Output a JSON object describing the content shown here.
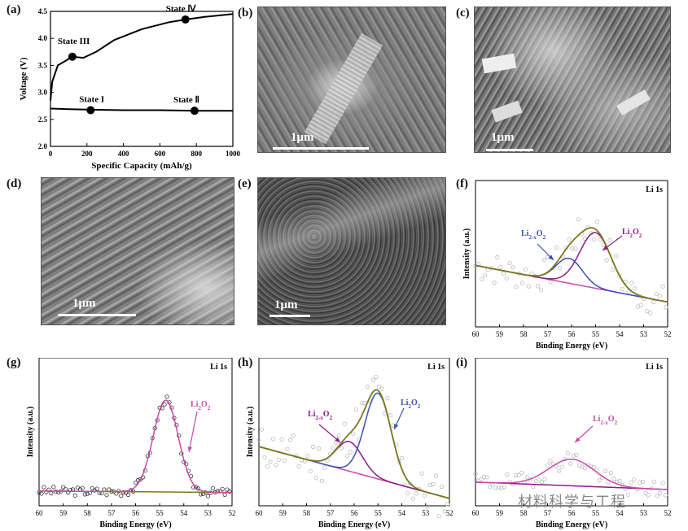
{
  "panels": {
    "a": "(a)",
    "b": "(b)",
    "c": "(c)",
    "d": "(d)",
    "e": "(e)",
    "f": "(f)",
    "g": "(g)",
    "h": "(h)",
    "i": "(i)"
  },
  "sem": {
    "b_scale": "1μm",
    "c_scale": "1μm",
    "d_scale": "1μm",
    "e_scale": "1μm"
  },
  "watermark": "材料科学与工程",
  "colors": {
    "purple": "#8b1c8b",
    "blue": "#3a4fb8",
    "olive": "#7a7a1c",
    "magenta": "#c84aa8",
    "black": "#000000"
  },
  "chart_data": [
    {
      "id": "a",
      "type": "line",
      "xlabel": "Specific Capacity (mAh/g)",
      "ylabel": "Voltage (V)",
      "xlim": [
        0,
        1000
      ],
      "ylim": [
        2.0,
        4.5
      ],
      "xticks": [
        "0",
        "200",
        "400",
        "600",
        "800",
        "1000"
      ],
      "yticks": [
        "2.0",
        "2.5",
        "3.0",
        "3.5",
        "4.0",
        "4.5"
      ],
      "series": [
        {
          "x": [
            0,
            100,
            200,
            400,
            600,
            800,
            1000
          ],
          "y": [
            2.7,
            2.69,
            2.68,
            2.67,
            2.67,
            2.66,
            2.66
          ]
        },
        {
          "x": [
            0,
            10,
            40,
            120,
            180,
            250,
            350,
            500,
            650,
            740,
            850,
            1000
          ],
          "y": [
            2.85,
            3.2,
            3.5,
            3.66,
            3.64,
            3.75,
            3.97,
            4.17,
            4.3,
            4.35,
            4.4,
            4.45
          ]
        }
      ],
      "annotations": [
        {
          "label": "State I",
          "x": 220,
          "y": 2.67
        },
        {
          "label": "State Ⅱ",
          "x": 790,
          "y": 2.66
        },
        {
          "label": "State III",
          "x": 120,
          "y": 3.66
        },
        {
          "label": "State Ⅳ",
          "x": 740,
          "y": 4.35
        }
      ]
    },
    {
      "id": "f",
      "type": "scatter",
      "title": "Li 1s",
      "xlabel": "Binding Energy (eV)",
      "ylabel": "Intensity (a.u.)",
      "xlim": [
        60,
        52
      ],
      "xticks": [
        "60",
        "59",
        "58",
        "57",
        "56",
        "55",
        "54",
        "53",
        "52"
      ],
      "labels": [
        "Li2-xO2",
        "Li2O2"
      ]
    },
    {
      "id": "g",
      "type": "scatter",
      "title": "Li 1s",
      "xlabel": "Binding Energy (eV)",
      "ylabel": "Intensity (a.u.)",
      "xlim": [
        60,
        52
      ],
      "xticks": [
        "60",
        "59",
        "58",
        "57",
        "56",
        "55",
        "54",
        "53",
        "52"
      ],
      "labels": [
        "Li2O2"
      ]
    },
    {
      "id": "h",
      "type": "scatter",
      "title": "Li 1s",
      "xlabel": "Binding Energy (eV)",
      "ylabel": "Intensity (a.u.)",
      "xlim": [
        60,
        52
      ],
      "xticks": [
        "60",
        "59",
        "58",
        "57",
        "56",
        "55",
        "54",
        "53",
        "52"
      ],
      "labels": [
        "Li2-xO2",
        "Li2O2"
      ]
    },
    {
      "id": "i",
      "type": "scatter",
      "title": "Li 1s",
      "xlabel": "Binding Energy (eV)",
      "ylabel": "",
      "xlim": [
        60,
        52
      ],
      "xticks": [
        "60",
        "59",
        "58",
        "57",
        "56",
        "55",
        "54",
        "53",
        "52"
      ],
      "labels": [
        "Li2-xO2"
      ]
    }
  ]
}
